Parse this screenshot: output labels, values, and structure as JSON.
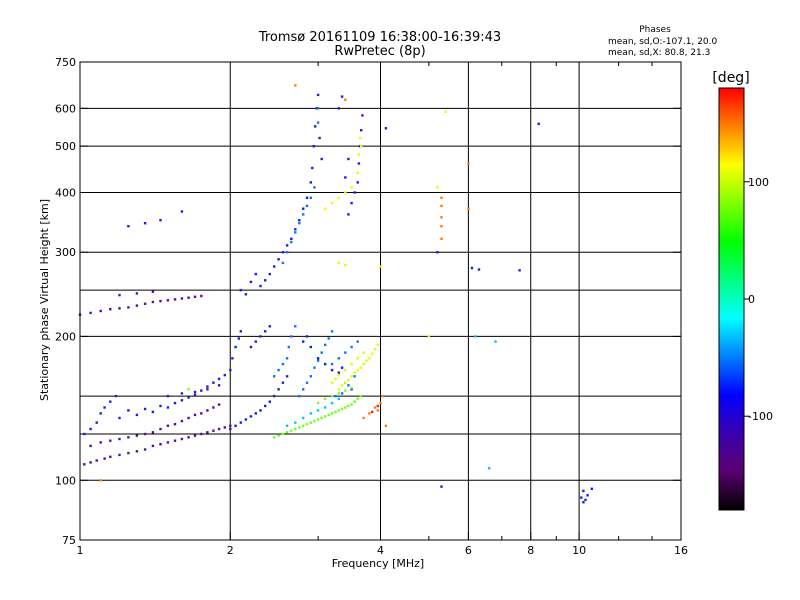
{
  "chart_data": {
    "type": "scatter",
    "title": "Tromsø 20161109 16:38:00-16:39:43",
    "subtitle": "RwPretec (8p)",
    "xlabel": "Frequency [MHz]",
    "ylabel": "Stationary phase Virtual Height [km]",
    "x_scale": "log",
    "y_scale": "log",
    "xlim": [
      1,
      16
    ],
    "ylim": [
      75,
      750
    ],
    "x_ticks": [
      1,
      2,
      4,
      6,
      8,
      10,
      16
    ],
    "y_ticks": [
      75,
      100,
      200,
      300,
      400,
      500,
      600,
      750
    ],
    "x_grid": [
      1,
      2,
      4,
      6,
      8,
      10
    ],
    "y_grid": [
      100,
      125,
      150,
      200,
      250,
      300,
      400,
      500,
      600
    ],
    "stats": {
      "heading": "Phases",
      "line1": "mean, sd,O:-107.1, 20.0",
      "line2": "mean, sd,X:  80.8, 21.3"
    },
    "colorbar": {
      "label": "[deg]",
      "range": [
        -180,
        180
      ],
      "ticks": [
        100,
        0,
        -100
      ],
      "colors": [
        "#000000",
        "#5a0070",
        "#3a00b0",
        "#0000ff",
        "#0080ff",
        "#00ffff",
        "#00ff80",
        "#00ff00",
        "#80ff00",
        "#ffff00",
        "#ff8000",
        "#ff0000"
      ]
    },
    "series": [
      {
        "color": "#5010a0",
        "points": [
          [
            1.02,
            108
          ],
          [
            1.05,
            109
          ],
          [
            1.08,
            110
          ],
          [
            1.12,
            111
          ],
          [
            1.15,
            112
          ],
          [
            1.2,
            113
          ],
          [
            1.25,
            114
          ],
          [
            1.3,
            115
          ],
          [
            1.35,
            116
          ],
          [
            1.4,
            118
          ],
          [
            1.45,
            119
          ],
          [
            1.5,
            120
          ],
          [
            1.55,
            121
          ],
          [
            1.6,
            122
          ],
          [
            1.65,
            123
          ],
          [
            1.7,
            124
          ],
          [
            1.75,
            125
          ],
          [
            1.8,
            126
          ],
          [
            1.85,
            127
          ],
          [
            1.9,
            128
          ],
          [
            1.95,
            129
          ],
          [
            2.0,
            130
          ],
          [
            1.05,
            118
          ],
          [
            1.1,
            120
          ],
          [
            1.15,
            121
          ],
          [
            1.2,
            122
          ],
          [
            1.25,
            123
          ],
          [
            1.3,
            124
          ],
          [
            1.35,
            125
          ],
          [
            1.4,
            126
          ],
          [
            1.45,
            128
          ],
          [
            1.5,
            130
          ],
          [
            1.55,
            131
          ],
          [
            1.6,
            133
          ],
          [
            1.65,
            135
          ],
          [
            1.7,
            137
          ],
          [
            1.75,
            138
          ],
          [
            1.8,
            140
          ],
          [
            1.85,
            142
          ],
          [
            1.9,
            144
          ],
          [
            1.5,
            150
          ],
          [
            1.6,
            152
          ],
          [
            1.7,
            153
          ],
          [
            1.8,
            155
          ],
          [
            1.9,
            158
          ],
          [
            1.0,
            222
          ],
          [
            1.05,
            224
          ],
          [
            1.1,
            226
          ],
          [
            1.15,
            228
          ],
          [
            1.2,
            229
          ],
          [
            1.25,
            230
          ],
          [
            1.3,
            232
          ],
          [
            1.35,
            234
          ],
          [
            1.4,
            236
          ],
          [
            1.45,
            237
          ],
          [
            1.5,
            238
          ],
          [
            1.55,
            239
          ],
          [
            1.6,
            240
          ],
          [
            1.65,
            241
          ],
          [
            1.7,
            242
          ],
          [
            1.75,
            243
          ],
          [
            1.2,
            244
          ],
          [
            1.3,
            246
          ],
          [
            1.4,
            248
          ]
        ]
      },
      {
        "color": "#1820e0",
        "points": [
          [
            1.02,
            125
          ],
          [
            1.05,
            128
          ],
          [
            1.08,
            132
          ],
          [
            1.1,
            138
          ],
          [
            1.12,
            142
          ],
          [
            1.15,
            146
          ],
          [
            1.18,
            150
          ],
          [
            1.2,
            135
          ],
          [
            1.25,
            140
          ],
          [
            1.3,
            137
          ],
          [
            1.35,
            141
          ],
          [
            1.4,
            139
          ],
          [
            1.45,
            143
          ],
          [
            1.5,
            142
          ],
          [
            1.55,
            145
          ],
          [
            1.6,
            147
          ],
          [
            1.65,
            149
          ],
          [
            1.7,
            151
          ],
          [
            1.75,
            154
          ],
          [
            1.8,
            157
          ],
          [
            1.85,
            160
          ],
          [
            1.9,
            163
          ],
          [
            1.95,
            166
          ],
          [
            2.0,
            170
          ],
          [
            2.02,
            180
          ],
          [
            2.05,
            190
          ],
          [
            2.08,
            198
          ],
          [
            2.1,
            205
          ],
          [
            2.0,
            128
          ],
          [
            2.05,
            130
          ],
          [
            2.1,
            132
          ],
          [
            2.15,
            134
          ],
          [
            2.2,
            136
          ],
          [
            2.25,
            138
          ],
          [
            2.3,
            140
          ],
          [
            2.35,
            143
          ],
          [
            2.4,
            146
          ],
          [
            2.45,
            150
          ],
          [
            2.5,
            155
          ],
          [
            2.55,
            160
          ],
          [
            2.6,
            165
          ],
          [
            2.2,
            190
          ],
          [
            2.25,
            195
          ],
          [
            2.3,
            200
          ],
          [
            2.35,
            205
          ],
          [
            2.4,
            210
          ],
          [
            2.3,
            255
          ],
          [
            2.35,
            262
          ],
          [
            2.4,
            270
          ],
          [
            2.45,
            280
          ],
          [
            2.5,
            290
          ],
          [
            2.55,
            300
          ],
          [
            2.6,
            310
          ],
          [
            2.65,
            320
          ],
          [
            2.7,
            335
          ],
          [
            2.75,
            350
          ],
          [
            2.8,
            370
          ],
          [
            2.85,
            390
          ],
          [
            2.9,
            420
          ],
          [
            2.92,
            450
          ],
          [
            2.94,
            500
          ],
          [
            2.96,
            550
          ],
          [
            2.98,
            600
          ],
          [
            3.0,
            640
          ],
          [
            3.02,
            520
          ],
          [
            3.05,
            470
          ],
          [
            2.2,
            260
          ],
          [
            2.25,
            270
          ],
          [
            2.1,
            250
          ],
          [
            2.15,
            245
          ],
          [
            1.25,
            340
          ],
          [
            1.35,
            345
          ],
          [
            1.45,
            350
          ],
          [
            1.6,
            365
          ],
          [
            2.8,
            195
          ],
          [
            2.85,
            200
          ],
          [
            2.9,
            190
          ],
          [
            3.0,
            180
          ],
          [
            3.1,
            175
          ],
          [
            3.2,
            170
          ],
          [
            3.3,
            168
          ],
          [
            3.35,
            172
          ],
          [
            3.4,
            160
          ],
          [
            3.5,
            155
          ],
          [
            3.45,
            360
          ],
          [
            3.5,
            380
          ],
          [
            3.55,
            400
          ],
          [
            3.6,
            420
          ],
          [
            3.62,
            460
          ],
          [
            3.64,
            500
          ],
          [
            3.66,
            540
          ],
          [
            3.68,
            580
          ],
          [
            3.4,
            430
          ],
          [
            3.45,
            470
          ],
          [
            3.3,
            600
          ],
          [
            3.35,
            635
          ],
          [
            4.1,
            545
          ],
          [
            10.1,
            92
          ],
          [
            10.2,
            90
          ],
          [
            10.3,
            91
          ],
          [
            10.4,
            93
          ],
          [
            10.2,
            95
          ],
          [
            10.6,
            96
          ],
          [
            6.1,
            278
          ],
          [
            6.3,
            276
          ],
          [
            7.6,
            275
          ],
          [
            8.3,
            557
          ],
          [
            5.3,
            97
          ],
          [
            5.2,
            300
          ]
        ]
      },
      {
        "color": "#1070ff",
        "points": [
          [
            2.45,
            165
          ],
          [
            2.5,
            170
          ],
          [
            2.55,
            175
          ],
          [
            2.6,
            180
          ],
          [
            2.62,
            190
          ],
          [
            2.65,
            200
          ],
          [
            2.7,
            210
          ],
          [
            2.75,
            150
          ],
          [
            2.8,
            155
          ],
          [
            2.85,
            160
          ],
          [
            2.9,
            165
          ],
          [
            2.95,
            172
          ],
          [
            3.0,
            178
          ],
          [
            3.05,
            185
          ],
          [
            3.1,
            192
          ],
          [
            3.15,
            198
          ],
          [
            3.2,
            205
          ],
          [
            2.55,
            285
          ],
          [
            2.6,
            300
          ],
          [
            2.65,
            315
          ],
          [
            2.7,
            330
          ],
          [
            2.75,
            345
          ],
          [
            2.8,
            360
          ],
          [
            2.85,
            375
          ],
          [
            2.9,
            390
          ],
          [
            2.95,
            410
          ],
          [
            3.0,
            560
          ],
          [
            3.0,
            600
          ],
          [
            3.2,
            175
          ],
          [
            3.3,
            180
          ],
          [
            3.4,
            185
          ],
          [
            3.5,
            190
          ],
          [
            3.6,
            195
          ],
          [
            3.25,
            150
          ],
          [
            3.35,
            152
          ],
          [
            3.45,
            158
          ],
          [
            3.55,
            165
          ]
        ]
      },
      {
        "color": "#00c8ff",
        "points": [
          [
            2.6,
            130
          ],
          [
            2.7,
            132
          ],
          [
            2.8,
            135
          ],
          [
            2.9,
            138
          ],
          [
            3.0,
            140
          ],
          [
            3.1,
            142
          ],
          [
            3.2,
            145
          ],
          [
            3.3,
            148
          ],
          [
            6.2,
            200
          ],
          [
            6.8,
            195
          ],
          [
            6.6,
            106
          ]
        ]
      },
      {
        "color": "#70ff20",
        "points": [
          [
            2.45,
            123
          ],
          [
            2.5,
            124
          ],
          [
            2.55,
            125
          ],
          [
            2.6,
            126
          ],
          [
            2.65,
            127
          ],
          [
            2.7,
            128
          ],
          [
            2.75,
            129
          ],
          [
            2.8,
            130
          ],
          [
            2.85,
            131
          ],
          [
            2.9,
            132
          ],
          [
            2.95,
            133
          ],
          [
            3.0,
            134
          ],
          [
            3.05,
            135
          ],
          [
            3.1,
            136
          ],
          [
            3.15,
            137
          ],
          [
            3.2,
            138
          ],
          [
            3.25,
            139
          ],
          [
            3.3,
            140
          ],
          [
            3.35,
            141
          ],
          [
            3.4,
            142
          ],
          [
            3.45,
            143
          ],
          [
            3.5,
            144
          ],
          [
            3.55,
            146
          ],
          [
            3.6,
            148
          ],
          [
            3.65,
            150
          ],
          [
            3.0,
            145
          ],
          [
            3.1,
            148
          ],
          [
            3.2,
            150
          ],
          [
            3.3,
            152
          ],
          [
            3.4,
            154
          ],
          [
            3.5,
            156
          ],
          [
            1.65,
            155
          ]
        ]
      },
      {
        "color": "#e0ff00",
        "points": [
          [
            3.3,
            155
          ],
          [
            3.35,
            158
          ],
          [
            3.4,
            160
          ],
          [
            3.45,
            162
          ],
          [
            3.5,
            165
          ],
          [
            3.55,
            168
          ],
          [
            3.6,
            170
          ],
          [
            3.65,
            172
          ],
          [
            3.7,
            175
          ],
          [
            3.75,
            178
          ],
          [
            3.8,
            180
          ],
          [
            3.85,
            184
          ],
          [
            3.9,
            188
          ],
          [
            3.95,
            192
          ],
          [
            3.2,
            160
          ],
          [
            3.25,
            163
          ],
          [
            3.3,
            166
          ],
          [
            3.4,
            170
          ],
          [
            3.5,
            175
          ],
          [
            3.6,
            180
          ],
          [
            3.7,
            185
          ],
          [
            3.1,
            370
          ],
          [
            3.2,
            380
          ],
          [
            3.3,
            390
          ],
          [
            3.4,
            400
          ],
          [
            3.5,
            410
          ],
          [
            3.6,
            440
          ],
          [
            3.62,
            480
          ],
          [
            3.64,
            520
          ],
          [
            3.66,
            500
          ],
          [
            3.3,
            285
          ],
          [
            3.4,
            282
          ],
          [
            4.0,
            280
          ],
          [
            5.2,
            410
          ],
          [
            5.0,
            200
          ],
          [
            5.4,
            590
          ]
        ]
      },
      {
        "color": "#ff8000",
        "points": [
          [
            3.7,
            135
          ],
          [
            3.8,
            138
          ],
          [
            3.9,
            142
          ],
          [
            4.0,
            145
          ],
          [
            4.05,
            150
          ],
          [
            3.95,
            140
          ],
          [
            4.1,
            130
          ],
          [
            5.3,
            340
          ],
          [
            5.3,
            355
          ],
          [
            5.3,
            375
          ],
          [
            5.3,
            390
          ],
          [
            6.0,
            460
          ],
          [
            6.0,
            370
          ],
          [
            1.1,
            100
          ],
          [
            2.7,
            670
          ],
          [
            3.4,
            625
          ],
          [
            5.3,
            320
          ]
        ]
      },
      {
        "color": "#ff2000",
        "points": [
          [
            3.85,
            139
          ],
          [
            3.95,
            143
          ]
        ]
      }
    ]
  }
}
